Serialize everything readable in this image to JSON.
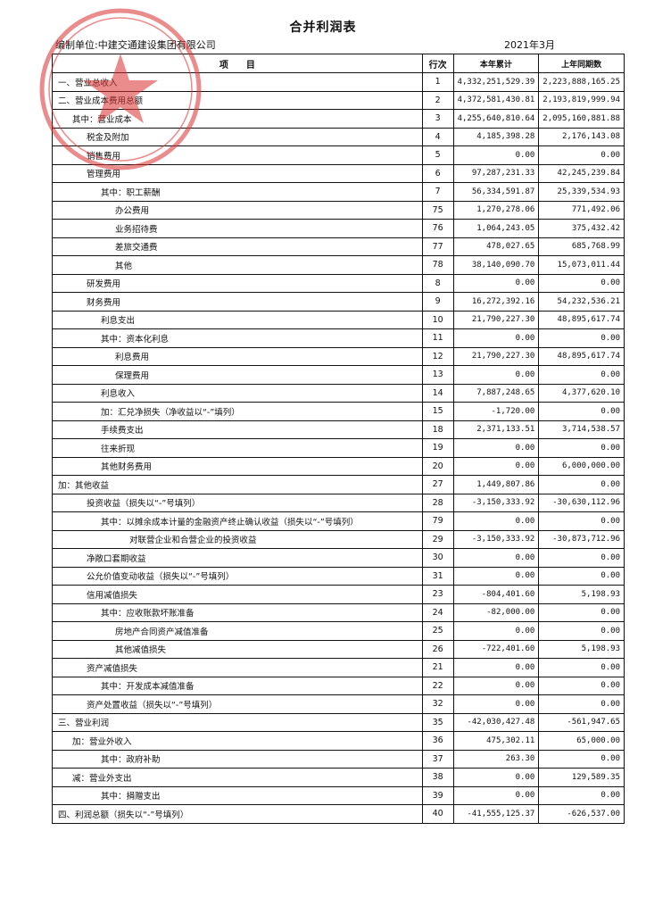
{
  "title": "合并利润表",
  "company": "编制单位:中建交通建设集团有限公司",
  "period": "2021年3月",
  "stamp_color": "#d9302f",
  "headers": {
    "item": "项　　目",
    "line": "行次",
    "current": "本年累计",
    "prior": "上年同期数"
  },
  "rows": [
    {
      "item": "一、营业总收入",
      "indent": 0,
      "line": "1",
      "current": "4,332,251,529.39",
      "prior": "2,223,888,165.25"
    },
    {
      "item": "二、营业成本费用总额",
      "indent": 0,
      "line": "2",
      "current": "4,372,581,430.81",
      "prior": "2,193,819,999.94"
    },
    {
      "item": "其中：营业成本",
      "indent": 1,
      "line": "3",
      "current": "4,255,640,810.64",
      "prior": "2,095,160,881.88"
    },
    {
      "item": "税金及附加",
      "indent": 2,
      "line": "4",
      "current": "4,185,398.28",
      "prior": "2,176,143.08"
    },
    {
      "item": "销售费用",
      "indent": 2,
      "line": "5",
      "current": "0.00",
      "prior": "0.00"
    },
    {
      "item": "管理费用",
      "indent": 2,
      "line": "6",
      "current": "97,287,231.33",
      "prior": "42,245,239.84"
    },
    {
      "item": "其中：职工薪酬",
      "indent": 3,
      "line": "7",
      "current": "56,334,591.87",
      "prior": "25,339,534.93"
    },
    {
      "item": "办公费用",
      "indent": 4,
      "line": "75",
      "current": "1,270,278.06",
      "prior": "771,492.06"
    },
    {
      "item": "业务招待费",
      "indent": 4,
      "line": "76",
      "current": "1,064,243.05",
      "prior": "375,432.42"
    },
    {
      "item": "差旅交通费",
      "indent": 4,
      "line": "77",
      "current": "478,027.65",
      "prior": "685,768.99"
    },
    {
      "item": "其他",
      "indent": 4,
      "line": "78",
      "current": "38,140,090.70",
      "prior": "15,073,011.44"
    },
    {
      "item": "研发费用",
      "indent": 2,
      "line": "8",
      "current": "0.00",
      "prior": "0.00"
    },
    {
      "item": "财务费用",
      "indent": 2,
      "line": "9",
      "current": "16,272,392.16",
      "prior": "54,232,536.21"
    },
    {
      "item": "利息支出",
      "indent": 3,
      "line": "10",
      "current": "21,790,227.30",
      "prior": "48,895,617.74"
    },
    {
      "item": "其中：资本化利息",
      "indent": 3,
      "line": "11",
      "current": "0.00",
      "prior": "0.00"
    },
    {
      "item": "利息费用",
      "indent": 4,
      "line": "12",
      "current": "21,790,227.30",
      "prior": "48,895,617.74"
    },
    {
      "item": "保理费用",
      "indent": 4,
      "line": "13",
      "current": "0.00",
      "prior": "0.00"
    },
    {
      "item": "利息收入",
      "indent": 3,
      "line": "14",
      "current": "7,887,248.65",
      "prior": "4,377,620.10"
    },
    {
      "item": "加：汇兑净损失（净收益以“-”填列）",
      "indent": 3,
      "line": "15",
      "current": "-1,720.00",
      "prior": "0.00"
    },
    {
      "item": "手续费支出",
      "indent": 3,
      "line": "18",
      "current": "2,371,133.51",
      "prior": "3,714,538.57"
    },
    {
      "item": "往来折现",
      "indent": 3,
      "line": "19",
      "current": "0.00",
      "prior": "0.00"
    },
    {
      "item": "其他财务费用",
      "indent": 3,
      "line": "20",
      "current": "0.00",
      "prior": "6,000,000.00"
    },
    {
      "item": "加：其他收益",
      "indent": 0,
      "line": "27",
      "current": "1,449,807.86",
      "prior": "0.00"
    },
    {
      "item": "投资收益（损失以“-”号填列）",
      "indent": 2,
      "line": "28",
      "current": "-3,150,333.92",
      "prior": "-30,630,112.96"
    },
    {
      "item": "其中：以摊余成本计量的金融资产终止确认收益（损失以“-”号填列）",
      "indent": 3,
      "line": "79",
      "current": "0.00",
      "prior": "0.00"
    },
    {
      "item": "对联营企业和合营企业的投资收益",
      "indent": 5,
      "line": "29",
      "current": "-3,150,333.92",
      "prior": "-30,873,712.96"
    },
    {
      "item": "净敞口套期收益",
      "indent": 2,
      "line": "30",
      "current": "0.00",
      "prior": "0.00"
    },
    {
      "item": "公允价值变动收益（损失以“-”号填列）",
      "indent": 2,
      "line": "31",
      "current": "0.00",
      "prior": "0.00"
    },
    {
      "item": "信用减值损失",
      "indent": 2,
      "line": "23",
      "current": "-804,401.60",
      "prior": "5,198.93"
    },
    {
      "item": "其中：应收账款坏账准备",
      "indent": 3,
      "line": "24",
      "current": "-82,000.00",
      "prior": "0.00"
    },
    {
      "item": "房地产合同资产减值准备",
      "indent": 4,
      "line": "25",
      "current": "0.00",
      "prior": "0.00"
    },
    {
      "item": "其他减值损失",
      "indent": 4,
      "line": "26",
      "current": "-722,401.60",
      "prior": "5,198.93"
    },
    {
      "item": "资产减值损失",
      "indent": 2,
      "line": "21",
      "current": "0.00",
      "prior": "0.00"
    },
    {
      "item": "其中：开发成本减值准备",
      "indent": 3,
      "line": "22",
      "current": "0.00",
      "prior": "0.00"
    },
    {
      "item": "资产处置收益（损失以“-”号填列）",
      "indent": 2,
      "line": "32",
      "current": "0.00",
      "prior": "0.00"
    },
    {
      "item": "三、营业利润",
      "indent": 0,
      "line": "35",
      "current": "-42,030,427.48",
      "prior": "-561,947.65"
    },
    {
      "item": "加：营业外收入",
      "indent": 1,
      "line": "36",
      "current": "475,302.11",
      "prior": "65,000.00"
    },
    {
      "item": "其中：政府补助",
      "indent": 3,
      "line": "37",
      "current": "263.30",
      "prior": "0.00"
    },
    {
      "item": "减：营业外支出",
      "indent": 1,
      "line": "38",
      "current": "0.00",
      "prior": "129,589.35"
    },
    {
      "item": "其中：捐赠支出",
      "indent": 3,
      "line": "39",
      "current": "0.00",
      "prior": "0.00"
    },
    {
      "item": "四、利润总额（损失以“-”号填列）",
      "indent": 0,
      "line": "40",
      "current": "-41,555,125.37",
      "prior": "-626,537.00"
    }
  ]
}
